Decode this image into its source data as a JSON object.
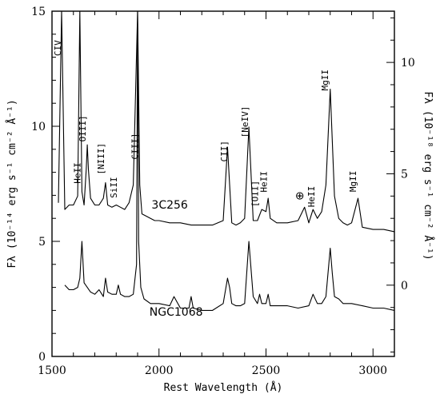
{
  "chart_data": {
    "type": "line",
    "title": "",
    "xlabel": "Rest Wavelength (Å)",
    "ylabel_left": "Fλ (10⁻¹⁴ erg s⁻¹ cm⁻² Å⁻¹)",
    "ylabel_right": "Fλ (10⁻¹⁸ erg s⁻¹ cm⁻² Å⁻¹)",
    "xlim": [
      1500,
      3100
    ],
    "ylim_left": [
      0,
      15
    ],
    "ylim_right": [
      -3.2,
      12.3
    ],
    "x_ticks": [
      1500,
      2000,
      2500,
      3000
    ],
    "y_ticks_left": [
      0,
      5,
      10,
      15
    ],
    "y_ticks_right": [
      0,
      5,
      10
    ],
    "grid": false,
    "series": [
      {
        "name": "3C256",
        "axis": "right",
        "x": [
          1530,
          1545,
          1560,
          1580,
          1600,
          1620,
          1630,
          1640,
          1650,
          1660,
          1665,
          1670,
          1680,
          1700,
          1720,
          1740,
          1750,
          1760,
          1780,
          1800,
          1820,
          1840,
          1860,
          1880,
          1900,
          1910,
          1920,
          1940,
          1960,
          1980,
          2000,
          2050,
          2100,
          2150,
          2200,
          2250,
          2300,
          2320,
          2340,
          2360,
          2380,
          2400,
          2420,
          2440,
          2460,
          2480,
          2500,
          2510,
          2520,
          2550,
          2600,
          2650,
          2680,
          2700,
          2720,
          2740,
          2760,
          2780,
          2800,
          2820,
          2840,
          2860,
          2880,
          2900,
          2930,
          2950,
          3000,
          3050,
          3100
        ],
        "y": [
          3.7,
          12.3,
          3.4,
          3.6,
          3.6,
          4.0,
          12.3,
          4.2,
          3.6,
          5.2,
          6.3,
          5.2,
          3.9,
          3.6,
          3.6,
          3.9,
          4.6,
          3.6,
          3.5,
          3.6,
          3.5,
          3.4,
          3.7,
          4.5,
          12.3,
          4.5,
          3.2,
          3.1,
          3.0,
          2.9,
          2.9,
          2.8,
          2.8,
          2.7,
          2.7,
          2.7,
          2.9,
          6.2,
          2.8,
          2.7,
          2.8,
          3.0,
          7.1,
          2.9,
          2.9,
          3.4,
          3.3,
          3.9,
          3.0,
          2.8,
          2.8,
          2.9,
          3.5,
          2.8,
          3.4,
          3.0,
          3.3,
          4.5,
          8.8,
          4.0,
          3.0,
          2.8,
          2.7,
          2.8,
          3.9,
          2.6,
          2.5,
          2.5,
          2.4
        ]
      },
      {
        "name": "NGC1068",
        "axis": "left",
        "x": [
          1560,
          1580,
          1600,
          1620,
          1630,
          1640,
          1650,
          1680,
          1700,
          1720,
          1740,
          1750,
          1760,
          1780,
          1800,
          1810,
          1820,
          1840,
          1860,
          1880,
          1895,
          1900,
          1905,
          1915,
          1930,
          1960,
          2000,
          2050,
          2070,
          2100,
          2140,
          2150,
          2160,
          2200,
          2250,
          2300,
          2320,
          2330,
          2340,
          2360,
          2380,
          2400,
          2420,
          2440,
          2460,
          2470,
          2480,
          2500,
          2510,
          2520,
          2550,
          2600,
          2650,
          2700,
          2720,
          2740,
          2760,
          2780,
          2800,
          2810,
          2820,
          2840,
          2860,
          2900,
          2950,
          3000,
          3050,
          3100
        ],
        "y": [
          3.1,
          2.9,
          2.9,
          3.0,
          3.4,
          5.0,
          3.2,
          2.8,
          2.7,
          2.9,
          2.6,
          3.4,
          2.8,
          2.7,
          2.7,
          3.1,
          2.7,
          2.6,
          2.6,
          2.7,
          4.0,
          15.0,
          5.0,
          3.0,
          2.5,
          2.3,
          2.3,
          2.2,
          2.6,
          2.1,
          2.1,
          2.6,
          2.1,
          2.0,
          2.0,
          2.3,
          3.4,
          3.0,
          2.3,
          2.2,
          2.2,
          2.3,
          5.0,
          2.6,
          2.3,
          2.7,
          2.3,
          2.3,
          2.7,
          2.2,
          2.2,
          2.2,
          2.1,
          2.2,
          2.7,
          2.3,
          2.3,
          2.6,
          4.7,
          3.6,
          2.6,
          2.5,
          2.3,
          2.3,
          2.2,
          2.1,
          2.1,
          2.0
        ]
      }
    ],
    "annotations": [
      {
        "text": "CIV",
        "x": 1549,
        "rotated": true
      },
      {
        "text": "HeII",
        "x": 1640,
        "rotated": true
      },
      {
        "text": "OIII]",
        "x": 1664,
        "rotated": true
      },
      {
        "text": "[NIII]",
        "x": 1750,
        "rotated": true
      },
      {
        "text": "SiII",
        "x": 1810,
        "rotated": true
      },
      {
        "text": "CIII]",
        "x": 1909,
        "rotated": true
      },
      {
        "text": "CII]",
        "x": 2326,
        "rotated": true
      },
      {
        "text": "[NeIV]",
        "x": 2424,
        "rotated": true
      },
      {
        "text": "[OII]",
        "x": 2470,
        "rotated": true
      },
      {
        "text": "HeII",
        "x": 2511,
        "rotated": true
      },
      {
        "text": "⊕",
        "x": 2680,
        "rotated": false
      },
      {
        "text": "HeII",
        "x": 2733,
        "rotated": true
      },
      {
        "text": "MgII",
        "x": 2798,
        "rotated": true
      },
      {
        "text": "MgII",
        "x": 2928,
        "rotated": true
      }
    ]
  }
}
